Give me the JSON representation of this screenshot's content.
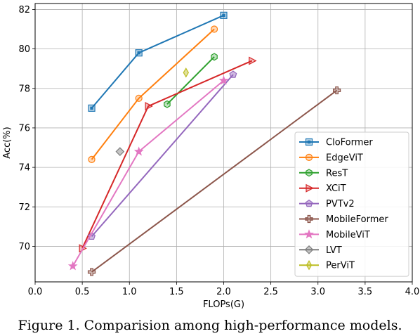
{
  "caption": "Figure 1. Comparision among high-performance models.",
  "chart_data": {
    "type": "line",
    "xlabel": "FLOPs(G)",
    "ylabel": "Acc(%)",
    "xlim": [
      0.0,
      4.0
    ],
    "ylim": [
      68.2,
      82.3
    ],
    "xticks": [
      "0.0",
      "0.5",
      "1.0",
      "1.5",
      "2.0",
      "2.5",
      "3.0",
      "3.5",
      "4.0"
    ],
    "yticks": [
      "70",
      "72",
      "74",
      "76",
      "78",
      "80",
      "82"
    ],
    "grid": true,
    "legend_position": "lower-right",
    "series": [
      {
        "name": "CloFormer",
        "color": "#1f77b4",
        "marker": "square",
        "x": [
          0.6,
          1.1,
          2.0
        ],
        "y": [
          77.0,
          79.8,
          81.7
        ]
      },
      {
        "name": "EdgeViT",
        "color": "#ff7f0e",
        "marker": "circle",
        "x": [
          0.6,
          1.1,
          1.9
        ],
        "y": [
          74.4,
          77.5,
          81.0
        ]
      },
      {
        "name": "ResT",
        "color": "#2ca02c",
        "marker": "hexagon",
        "x": [
          1.4,
          1.9
        ],
        "y": [
          77.2,
          79.6
        ]
      },
      {
        "name": "XCiT",
        "color": "#d62728",
        "marker": "triangle-right",
        "x": [
          0.5,
          1.2,
          2.3
        ],
        "y": [
          69.9,
          77.1,
          79.4
        ]
      },
      {
        "name": "PVTv2",
        "color": "#9467bd",
        "marker": "pentagon",
        "x": [
          0.6,
          2.1
        ],
        "y": [
          70.5,
          78.7
        ]
      },
      {
        "name": "MobileFormer",
        "color": "#8c564b",
        "marker": "plus",
        "x": [
          0.6,
          3.2
        ],
        "y": [
          68.7,
          77.9
        ]
      },
      {
        "name": "MobileViT",
        "color": "#e377c2",
        "marker": "star",
        "x": [
          0.4,
          1.1,
          2.0
        ],
        "y": [
          69.0,
          74.8,
          78.4
        ]
      },
      {
        "name": "LVT",
        "color": "#7f7f7f",
        "marker": "diamond",
        "x": [
          0.9
        ],
        "y": [
          74.8
        ]
      },
      {
        "name": "PerViT",
        "color": "#bcbd22",
        "marker": "thin-diamond",
        "x": [
          1.6
        ],
        "y": [
          78.8
        ]
      }
    ]
  }
}
